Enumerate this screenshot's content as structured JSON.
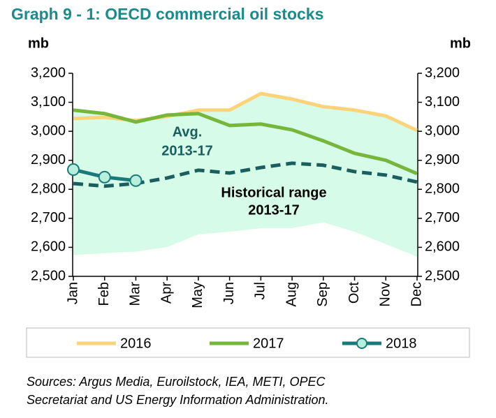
{
  "chart_data": {
    "type": "line",
    "title": "Graph 9 - 1: OECD commercial oil stocks",
    "ylabel": "mb",
    "y2label": "mb",
    "categories": [
      "Jan",
      "Feb",
      "Mar",
      "Apr",
      "May",
      "Jun",
      "Jul",
      "Aug",
      "Sep",
      "Oct",
      "Nov",
      "Dec"
    ],
    "ylim": [
      2500,
      3200
    ],
    "yticks": [
      {
        "value": 2500,
        "label": "2,500"
      },
      {
        "value": 2600,
        "label": "2,600"
      },
      {
        "value": 2700,
        "label": "2,700"
      },
      {
        "value": 2800,
        "label": "2,800"
      },
      {
        "value": 2900,
        "label": "2,900"
      },
      {
        "value": 3000,
        "label": "3,000"
      },
      {
        "value": 3100,
        "label": "3,100"
      },
      {
        "value": 3200,
        "label": "3,200"
      }
    ],
    "y2lim": [
      2500,
      3200
    ],
    "y2ticks": [
      {
        "value": 2500,
        "label": "2,500"
      },
      {
        "value": 2600,
        "label": "2,600"
      },
      {
        "value": 2700,
        "label": "2,700"
      },
      {
        "value": 2800,
        "label": "2,800"
      },
      {
        "value": 2900,
        "label": "2,900"
      },
      {
        "value": 3000,
        "label": "3,000"
      },
      {
        "value": 3100,
        "label": "3,100"
      },
      {
        "value": 3200,
        "label": "3,200"
      }
    ],
    "range": {
      "color": "#d6fbe8",
      "upper": [
        3073,
        3061,
        3037,
        3056,
        3073,
        3073,
        3130,
        3111,
        3085,
        3073,
        3053,
        3003
      ],
      "lower": [
        2573,
        2580,
        2585,
        2601,
        2645,
        2654,
        2666,
        2666,
        2686,
        2654,
        2611,
        2568
      ]
    },
    "range_label": [
      "Historical range",
      "2013-17"
    ],
    "average": {
      "color": "#1b5e5e",
      "values": [
        2820,
        2811,
        2820,
        2839,
        2866,
        2856,
        2875,
        2890,
        2883,
        2861,
        2849,
        2825
      ]
    },
    "average_label": [
      "Avg.",
      "2013-17"
    ],
    "series": [
      {
        "name": "2016",
        "color": "#fdd37a",
        "values": [
          3044,
          3048,
          3037,
          3051,
          3073,
          3073,
          3130,
          3111,
          3085,
          3073,
          3053,
          3003
        ]
      },
      {
        "name": "2017",
        "color": "#76b63a",
        "values": [
          3073,
          3061,
          3032,
          3056,
          3061,
          3020,
          3025,
          3005,
          2967,
          2924,
          2900,
          2854
        ]
      },
      {
        "name": "2018",
        "color": "#1a7a7a",
        "marker_color": "#b6f0dc",
        "values": [
          2868,
          2842,
          2830,
          null,
          null,
          null,
          null,
          null,
          null,
          null,
          null,
          null
        ]
      }
    ],
    "source": [
      "Sources: Argus Media, Euroilstock, IEA, METI, OPEC",
      "Secretariat and US Energy Information Administration."
    ]
  }
}
